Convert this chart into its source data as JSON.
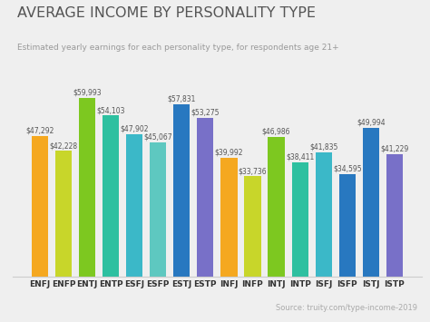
{
  "categories": [
    "ENFJ",
    "ENFP",
    "ENTJ",
    "ENTP",
    "ESFJ",
    "ESFP",
    "ESTJ",
    "ESTP",
    "INFJ",
    "INFP",
    "INTJ",
    "INTP",
    "ISFJ",
    "ISFP",
    "ISTJ",
    "ISTP"
  ],
  "values": [
    47292,
    42228,
    59993,
    54103,
    47902,
    45067,
    57831,
    53275,
    39992,
    33736,
    46986,
    38411,
    41835,
    34595,
    49994,
    41229
  ],
  "bar_colors": [
    "#F5A820",
    "#C8D62A",
    "#7DC820",
    "#2EC0A0",
    "#3BB8C8",
    "#5EC8C0",
    "#2878C0",
    "#7870C8",
    "#F5A820",
    "#C8D62A",
    "#7DC820",
    "#2EC0A0",
    "#3BB8C8",
    "#2878C0",
    "#2878C0",
    "#7870C8"
  ],
  "title": "AVERAGE INCOME BY PERSONALITY TYPE",
  "subtitle": "Estimated yearly earnings for each personality type, for respondents age 21+",
  "source": "Source: truity.com/type-income-2019",
  "ylim": [
    0,
    68000
  ],
  "background_color": "#EFEFEF",
  "title_fontsize": 11.5,
  "subtitle_fontsize": 6.5,
  "label_fontsize": 5.5,
  "tick_fontsize": 6.5,
  "source_fontsize": 6.0,
  "bar_width": 0.7
}
